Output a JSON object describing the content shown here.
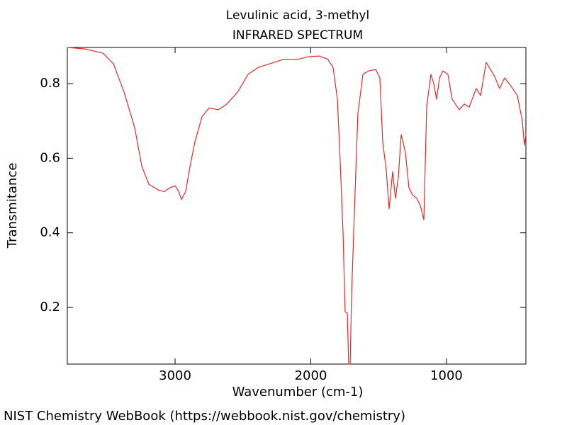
{
  "chart_data": {
    "type": "line",
    "title": "Levulinic acid, 3-methyl",
    "subtitle": "INFRARED SPECTRUM",
    "x_label": "Wavenumber (cm-1)",
    "y_label": "Transmitance",
    "source": "NIST Chemistry WebBook (https://webbook.nist.gov/chemistry)",
    "color": "#e8282a",
    "xlim": [
      3794,
      415
    ],
    "ylim": [
      0.048,
      0.897
    ],
    "xticks": [
      3000,
      2000,
      1000
    ],
    "yticks": [
      0.2,
      0.4,
      0.6,
      0.8
    ],
    "x": [
      3794,
      3663,
      3533,
      3454,
      3376,
      3298,
      3245,
      3193,
      3115,
      3078,
      3037,
      3000,
      2974,
      2953,
      2922,
      2890,
      2854,
      2802,
      2749,
      2681,
      2619,
      2540,
      2462,
      2384,
      2305,
      2201,
      2096,
      2018,
      1940,
      1877,
      1836,
      1804,
      1783,
      1762,
      1747,
      1731,
      1721,
      1710,
      1700,
      1679,
      1653,
      1616,
      1574,
      1522,
      1491,
      1470,
      1444,
      1423,
      1397,
      1376,
      1355,
      1334,
      1303,
      1277,
      1251,
      1219,
      1193,
      1167,
      1146,
      1115,
      1094,
      1073,
      1052,
      1026,
      990,
      958,
      906,
      869,
      833,
      781,
      749,
      708,
      676,
      645,
      609,
      572,
      530,
      478,
      442,
      426,
      415
    ],
    "values": [
      0.897,
      0.893,
      0.882,
      0.853,
      0.777,
      0.682,
      0.578,
      0.53,
      0.513,
      0.511,
      0.521,
      0.526,
      0.511,
      0.489,
      0.511,
      0.578,
      0.644,
      0.711,
      0.735,
      0.73,
      0.745,
      0.777,
      0.825,
      0.844,
      0.853,
      0.865,
      0.865,
      0.872,
      0.874,
      0.866,
      0.844,
      0.758,
      0.587,
      0.397,
      0.188,
      0.185,
      0.048,
      0.048,
      0.226,
      0.454,
      0.72,
      0.825,
      0.834,
      0.838,
      0.815,
      0.644,
      0.568,
      0.464,
      0.564,
      0.492,
      0.549,
      0.663,
      0.616,
      0.521,
      0.502,
      0.492,
      0.473,
      0.435,
      0.739,
      0.825,
      0.8,
      0.758,
      0.815,
      0.834,
      0.825,
      0.758,
      0.73,
      0.745,
      0.737,
      0.787,
      0.768,
      0.857,
      0.838,
      0.819,
      0.787,
      0.815,
      0.796,
      0.768,
      0.701,
      0.635,
      0.663
    ]
  }
}
